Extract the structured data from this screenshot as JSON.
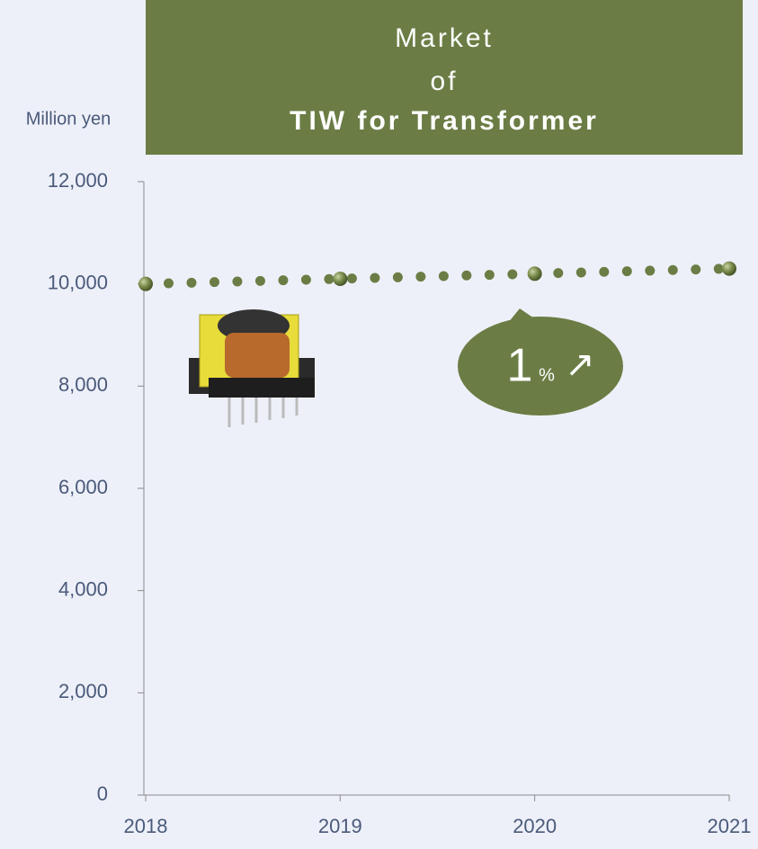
{
  "chart_data": {
    "type": "line",
    "title_lines": [
      "Market",
      "of",
      "TIW for Transformer"
    ],
    "y_label": "Million yen",
    "x": [
      2018,
      2019,
      2020,
      2021
    ],
    "values": [
      10000,
      10100,
      10200,
      10300
    ],
    "color": "#6b7d45",
    "xlim": [
      2018,
      2021
    ],
    "xticks": [
      2018,
      2019,
      2020,
      2021
    ],
    "ylim": [
      0,
      12000
    ],
    "yticks": [
      0,
      {
        "value": 2000,
        "label": "2,000"
      },
      {
        "value": 4000,
        "label": "4,000"
      },
      {
        "value": 6000,
        "label": "6,000"
      },
      {
        "value": 8000,
        "label": "8,000"
      },
      {
        "value": 10000,
        "label": "10,000"
      },
      {
        "value": 12000,
        "label": "12,000"
      }
    ],
    "annotation_parts": [
      "1",
      "%",
      "↗"
    ]
  }
}
